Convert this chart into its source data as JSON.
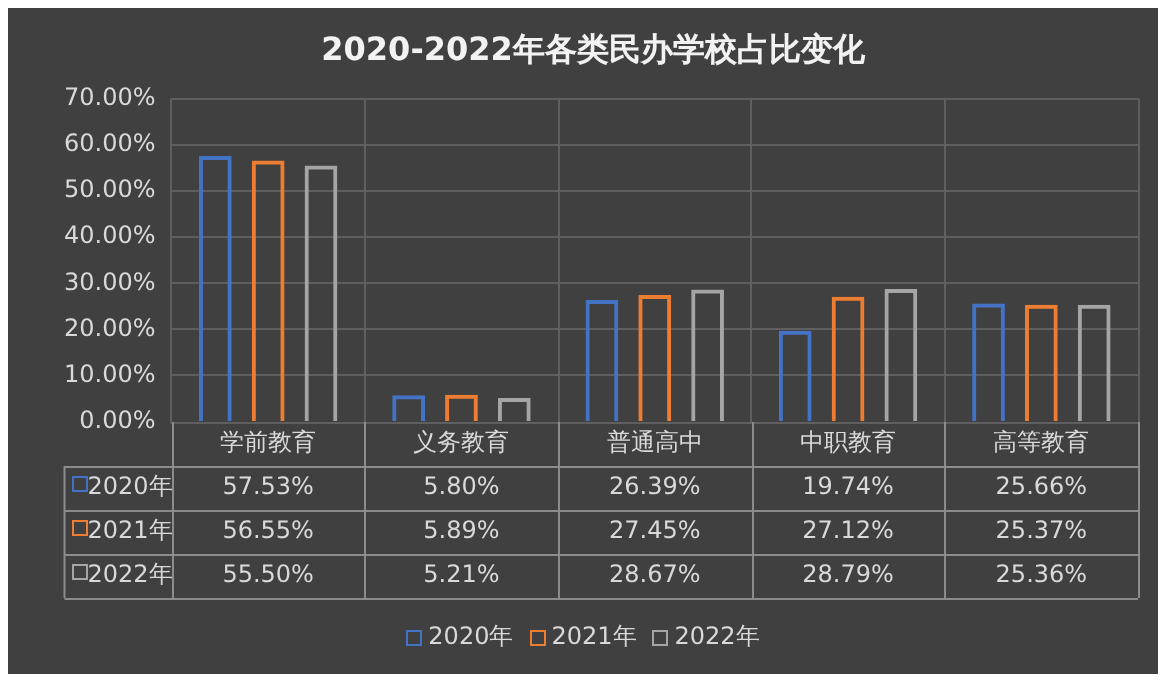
{
  "chart_data": {
    "type": "bar",
    "title": "2020-2022年各类民办学校占比变化",
    "categories": [
      "学前教育",
      "义务教育",
      "普通高中",
      "中职教育",
      "高等教育"
    ],
    "series": [
      {
        "name": "2020年",
        "color": "#4472c4",
        "values": [
          57.53,
          5.8,
          26.39,
          19.74,
          25.66
        ],
        "value_labels": [
          "57.53%",
          "5.80%",
          "26.39%",
          "19.74%",
          "25.66%"
        ]
      },
      {
        "name": "2021年",
        "color": "#ed7d31",
        "values": [
          56.55,
          5.89,
          27.45,
          27.12,
          25.37
        ],
        "value_labels": [
          "56.55%",
          "5.89%",
          "27.45%",
          "27.12%",
          "25.37%"
        ]
      },
      {
        "name": "2022年",
        "color": "#a5a5a5",
        "values": [
          55.5,
          5.21,
          28.67,
          28.79,
          25.36
        ],
        "value_labels": [
          "55.50%",
          "5.21%",
          "28.67%",
          "28.79%",
          "25.36%"
        ]
      }
    ],
    "ylim": [
      0,
      70
    ],
    "yticks": [
      {
        "value": 0,
        "label": "0.00%"
      },
      {
        "value": 10,
        "label": "10.00%"
      },
      {
        "value": 20,
        "label": "20.00%"
      },
      {
        "value": 30,
        "label": "30.00%"
      },
      {
        "value": 40,
        "label": "40.00%"
      },
      {
        "value": 50,
        "label": "50.00%"
      },
      {
        "value": 60,
        "label": "60.00%"
      },
      {
        "value": 70,
        "label": "70.00%"
      }
    ],
    "grid": true,
    "legend": "bottom"
  }
}
